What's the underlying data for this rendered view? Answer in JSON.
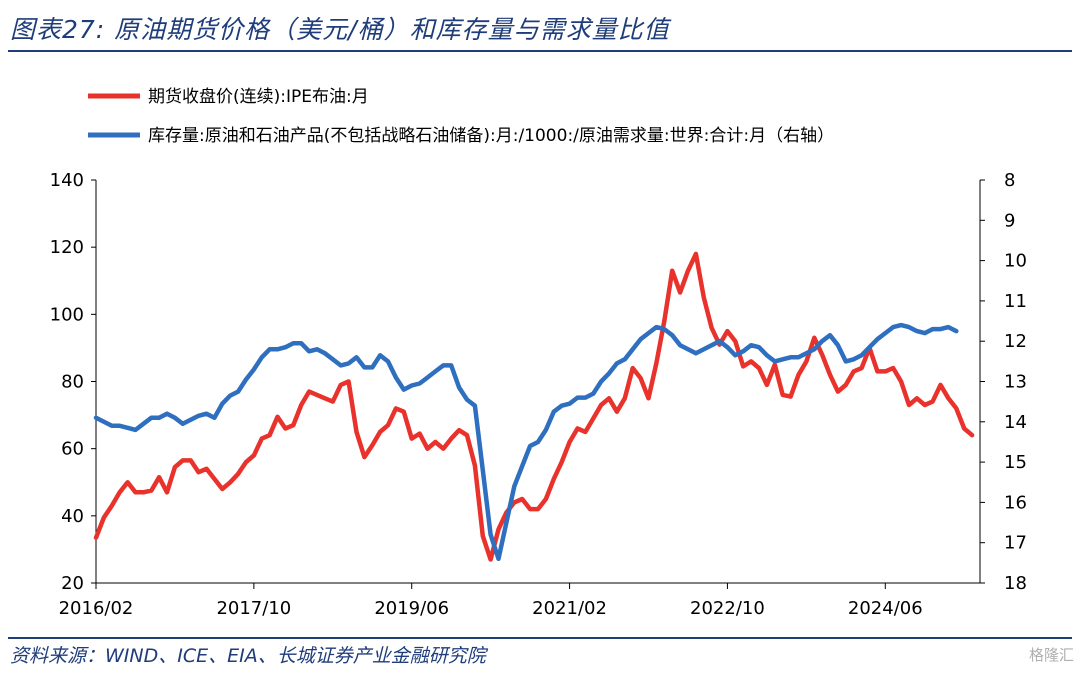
{
  "header": {
    "title": "图表27:  原油期货价格（美元/桶）和库存量与需求量比值"
  },
  "footer": {
    "source": "资料来源：WIND、ICE、EIA、长城证券产业金融研究院",
    "watermark": "格隆汇"
  },
  "colors": {
    "series_left": "#e8322b",
    "series_right": "#2f6fbf",
    "frame": "#1f3d7a"
  },
  "chart_data": {
    "type": "line",
    "title": "",
    "x_tick_labels": [
      "2016/02",
      "2017/10",
      "2019/06",
      "2021/02",
      "2022/10",
      "2024/06"
    ],
    "x_tick_month_index": [
      0,
      20,
      40,
      60,
      80,
      100
    ],
    "x_range_months": [
      0,
      112
    ],
    "left_axis": {
      "ylim": [
        20,
        140
      ],
      "ticks": [
        "140",
        "120",
        "100",
        "80",
        "60",
        "40",
        "20"
      ]
    },
    "right_axis": {
      "ylim": [
        18,
        8
      ],
      "inverted": true,
      "ticks": [
        "8",
        "9",
        "10",
        "11",
        "12",
        "13",
        "14",
        "15",
        "16",
        "17",
        "18"
      ]
    },
    "legend_position": "top",
    "series": [
      {
        "name": "期货收盘价(连续):IPE布油:月",
        "axis": "left",
        "values": [
          33.5,
          39.5,
          43,
          47,
          50,
          47,
          47,
          47.5,
          51.5,
          47,
          54.5,
          56.5,
          56.5,
          53,
          54,
          51,
          48,
          50,
          52.5,
          56,
          58,
          63,
          64,
          69.5,
          66,
          67,
          73,
          77,
          76,
          75,
          74,
          79,
          80,
          65,
          57.5,
          61,
          65,
          67,
          72,
          71,
          63,
          64.5,
          60,
          62,
          60,
          63,
          65.5,
          64,
          55,
          34,
          27,
          36,
          41,
          44,
          45,
          42,
          42,
          45,
          51,
          56,
          62,
          66,
          65,
          69,
          73,
          75,
          71,
          75,
          84,
          81,
          75,
          85.5,
          98,
          113,
          106.5,
          113,
          118,
          105,
          96,
          91,
          95,
          92,
          84.5,
          86,
          84,
          79,
          85,
          76,
          75.5,
          82,
          86,
          93,
          88,
          82,
          77,
          79,
          83,
          84,
          90,
          83,
          83,
          84,
          80,
          73,
          75,
          73,
          74,
          79,
          75,
          72,
          66,
          64
        ]
      },
      {
        "name": "库存量:原油和石油产品(不包括战略石油储备):月:/1000:/原油需求量:世界:合计:月（右轴）",
        "axis": "right",
        "values": [
          13.9,
          14.0,
          14.1,
          14.1,
          14.15,
          14.2,
          14.05,
          13.9,
          13.9,
          13.8,
          13.9,
          14.05,
          13.95,
          13.85,
          13.8,
          13.9,
          13.55,
          13.35,
          13.25,
          12.95,
          12.7,
          12.4,
          12.2,
          12.2,
          12.15,
          12.05,
          12.05,
          12.25,
          12.2,
          12.3,
          12.45,
          12.6,
          12.55,
          12.4,
          12.65,
          12.65,
          12.35,
          12.5,
          12.9,
          13.2,
          13.1,
          13.05,
          12.9,
          12.75,
          12.6,
          12.6,
          13.15,
          13.45,
          13.6,
          15.2,
          16.8,
          17.4,
          16.5,
          15.6,
          15.1,
          14.6,
          14.5,
          14.2,
          13.75,
          13.6,
          13.55,
          13.4,
          13.4,
          13.3,
          13.0,
          12.8,
          12.55,
          12.45,
          12.2,
          11.95,
          11.8,
          11.65,
          11.7,
          11.85,
          12.1,
          12.2,
          12.3,
          12.2,
          12.1,
          12.0,
          12.15,
          12.35,
          12.25,
          12.1,
          12.15,
          12.35,
          12.5,
          12.45,
          12.4,
          12.4,
          12.3,
          12.2,
          12.0,
          11.85,
          12.1,
          12.5,
          12.45,
          12.35,
          12.15,
          11.95,
          11.8,
          11.65,
          11.6,
          11.65,
          11.75,
          11.8,
          11.7,
          11.7,
          11.65,
          11.75
        ]
      }
    ]
  }
}
